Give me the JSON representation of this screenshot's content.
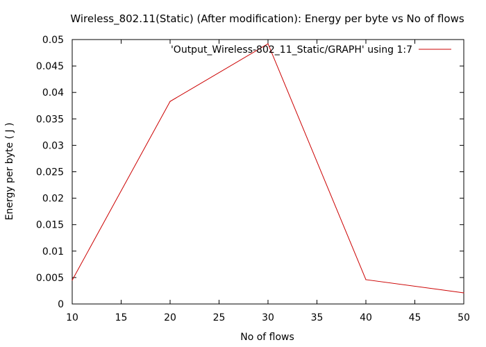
{
  "chart_data": {
    "type": "line",
    "title": "Wireless_802.11(Static) (After modification): Energy per byte vs No of flows",
    "xlabel": "No of flows",
    "ylabel": "Energy per byte ( J )",
    "xlim": [
      10,
      50
    ],
    "ylim": [
      0,
      0.05
    ],
    "xticks": [
      10,
      15,
      20,
      25,
      30,
      35,
      40,
      45,
      50
    ],
    "yticks": [
      0,
      0.005,
      0.01,
      0.015,
      0.02,
      0.025,
      0.03,
      0.035,
      0.04,
      0.045,
      0.05
    ],
    "xtick_labels": [
      "10",
      "15",
      "20",
      "25",
      "30",
      "35",
      "40",
      "45",
      "50"
    ],
    "ytick_labels": [
      "0",
      "0.005",
      "0.01",
      "0.015",
      "0.02",
      "0.025",
      "0.03",
      "0.035",
      "0.04",
      "0.045",
      "0.05"
    ],
    "grid": false,
    "legend_position": "top-right",
    "series": [
      {
        "name": "'Output_Wireless-802_11_Static/GRAPH' using 1:7",
        "color": "#cc0000",
        "x": [
          10,
          20,
          30,
          40,
          50
        ],
        "y": [
          0.0045,
          0.0383,
          0.0492,
          0.0046,
          0.0021
        ]
      }
    ]
  }
}
